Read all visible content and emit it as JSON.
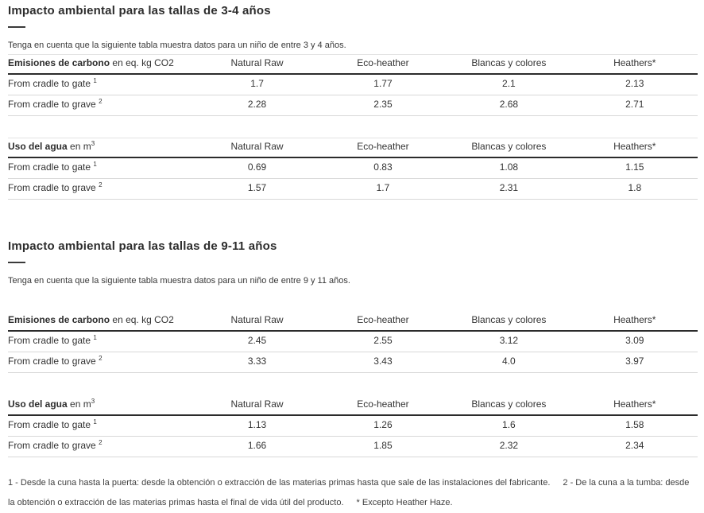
{
  "sections": [
    {
      "title": "Impacto ambiental para las tallas de 3-4 años",
      "note": "Tenga en cuenta que la siguiente tabla muestra datos para un niño de entre 3 y 4 años.",
      "tables": [
        {
          "header_bold": "Emisiones de carbono",
          "header_rest": "en eq. kg CO2",
          "header_sup": "",
          "columns": [
            "Natural Raw",
            "Eco-heather",
            "Blancas y colores",
            "Heathers*"
          ],
          "rows": [
            {
              "label": "From cradle to gate",
              "sup": "1",
              "values": [
                "1.7",
                "1.77",
                "2.1",
                "2.13"
              ]
            },
            {
              "label": "From cradle to grave",
              "sup": "2",
              "values": [
                "2.28",
                "2.35",
                "2.68",
                "2.71"
              ]
            }
          ]
        },
        {
          "header_bold": "Uso del agua",
          "header_rest": "en m",
          "header_sup": "3",
          "columns": [
            "Natural Raw",
            "Eco-heather",
            "Blancas y colores",
            "Heathers*"
          ],
          "rows": [
            {
              "label": "From cradle to gate",
              "sup": "1",
              "values": [
                "0.69",
                "0.83",
                "1.08",
                "1.15"
              ]
            },
            {
              "label": "From cradle to grave",
              "sup": "2",
              "values": [
                "1.57",
                "1.7",
                "2.31",
                "1.8"
              ]
            }
          ]
        }
      ]
    },
    {
      "title": "Impacto ambiental para las tallas de 9-11 años",
      "note": "Tenga en cuenta que la siguiente tabla muestra datos para un niño de entre 9 y 11 años.",
      "tables": [
        {
          "header_bold": "Emisiones de carbono",
          "header_rest": "en eq. kg CO2",
          "header_sup": "",
          "columns": [
            "Natural Raw",
            "Eco-heather",
            "Blancas y colores",
            "Heathers*"
          ],
          "rows": [
            {
              "label": "From cradle to gate",
              "sup": "1",
              "values": [
                "2.45",
                "2.55",
                "3.12",
                "3.09"
              ]
            },
            {
              "label": "From cradle to grave",
              "sup": "2",
              "values": [
                "3.33",
                "3.43",
                "4.0",
                "3.97"
              ]
            }
          ]
        },
        {
          "header_bold": "Uso del agua",
          "header_rest": "en m",
          "header_sup": "3",
          "columns": [
            "Natural Raw",
            "Eco-heather",
            "Blancas y colores",
            "Heathers*"
          ],
          "rows": [
            {
              "label": "From cradle to gate",
              "sup": "1",
              "values": [
                "1.13",
                "1.26",
                "1.6",
                "1.58"
              ]
            },
            {
              "label": "From cradle to grave",
              "sup": "2",
              "values": [
                "1.66",
                "1.85",
                "2.32",
                "2.34"
              ]
            }
          ]
        }
      ]
    }
  ],
  "footnotes": {
    "part1": "1 - Desde la cuna hasta la puerta: desde la obtención o extracción de las materias primas hasta que sale de las instalaciones del fabricante.",
    "part2": "2 - De la cuna a la tumba: desde la obtención o extracción de las materias primas hasta el final de vida útil del producto.",
    "part3": "* Excepto Heather Haze."
  }
}
